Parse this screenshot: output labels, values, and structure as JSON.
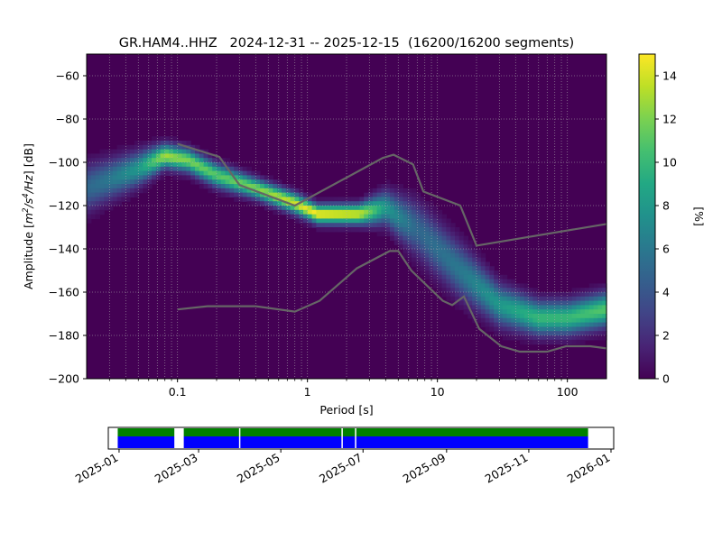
{
  "chart_data": [
    {
      "type": "heatmap",
      "title": "GR.HAM4..HHZ   2024-12-31 -- 2025-12-15  (16200/16200 segments)",
      "xlabel": "Period [s]",
      "ylabel_parts": [
        "Amplitude [",
        "m",
        "2",
        "/s",
        "4",
        "/Hz",
        "] [dB]"
      ],
      "xscale": "log",
      "xlim": [
        0.02,
        200
      ],
      "ylim": [
        -200,
        -50
      ],
      "x_ticks": [
        {
          "value": 0.1,
          "label": "0.1"
        },
        {
          "value": 1,
          "label": "1"
        },
        {
          "value": 10,
          "label": "10"
        },
        {
          "value": 100,
          "label": "100"
        }
      ],
      "y_ticks": [
        {
          "value": -60,
          "label": "−60"
        },
        {
          "value": -80,
          "label": "−80"
        },
        {
          "value": -100,
          "label": "−100"
        },
        {
          "value": -120,
          "label": "−120"
        },
        {
          "value": -140,
          "label": "−140"
        },
        {
          "value": -160,
          "label": "−160"
        },
        {
          "value": -180,
          "label": "−180"
        },
        {
          "value": -200,
          "label": "−200"
        }
      ],
      "grid": true,
      "colormap": "viridis",
      "colorbar": {
        "label": "[%]",
        "range": [
          0,
          15
        ],
        "ticks": [
          {
            "value": 0,
            "label": "0"
          },
          {
            "value": 2,
            "label": "2"
          },
          {
            "value": 4,
            "label": "4"
          },
          {
            "value": 6,
            "label": "6"
          },
          {
            "value": 8,
            "label": "8"
          },
          {
            "value": 10,
            "label": "10"
          },
          {
            "value": 12,
            "label": "12"
          },
          {
            "value": 14,
            "label": "14"
          }
        ]
      },
      "density_ridge": {
        "points": [
          {
            "period": 0.02,
            "db": -112,
            "width": 7,
            "peak": 5
          },
          {
            "period": 0.03,
            "db": -108,
            "width": 6,
            "peak": 6
          },
          {
            "period": 0.05,
            "db": -103,
            "width": 5,
            "peak": 8
          },
          {
            "period": 0.08,
            "db": -97,
            "width": 3.5,
            "peak": 13
          },
          {
            "period": 0.12,
            "db": -99,
            "width": 3.5,
            "peak": 12
          },
          {
            "period": 0.2,
            "db": -106,
            "width": 3.5,
            "peak": 11
          },
          {
            "period": 0.4,
            "db": -112,
            "width": 3,
            "peak": 12
          },
          {
            "period": 0.8,
            "db": -119,
            "width": 3,
            "peak": 14
          },
          {
            "period": 1.2,
            "db": -124,
            "width": 2.8,
            "peak": 15
          },
          {
            "period": 2.5,
            "db": -124,
            "width": 3,
            "peak": 14
          },
          {
            "period": 4,
            "db": -121,
            "width": 5,
            "peak": 8
          },
          {
            "period": 7,
            "db": -131,
            "width": 8,
            "peak": 5
          },
          {
            "period": 15,
            "db": -150,
            "width": 8,
            "peak": 6
          },
          {
            "period": 30,
            "db": -166,
            "width": 6,
            "peak": 8
          },
          {
            "period": 60,
            "db": -172,
            "width": 5,
            "peak": 10
          },
          {
            "period": 100,
            "db": -172,
            "width": 5,
            "peak": 10
          },
          {
            "period": 200,
            "db": -168,
            "width": 5,
            "peak": 11
          }
        ]
      },
      "series": [
        {
          "name": "",
          "color": "#666666",
          "points": [
            [
              0.1,
              -91.5
            ],
            [
              0.21,
              -97.5
            ],
            [
              0.3,
              -110.5
            ],
            [
              0.8,
              -120
            ],
            [
              3.8,
              -98
            ],
            [
              4.6,
              -96.5
            ],
            [
              6.5,
              -101
            ],
            [
              7.8,
              -113.5
            ],
            [
              15,
              -120
            ],
            [
              20,
              -138.5
            ],
            [
              200,
              -128.5
            ]
          ]
        },
        {
          "name": "",
          "color": "#666666",
          "points": [
            [
              0.1,
              -168
            ],
            [
              0.17,
              -166.5
            ],
            [
              0.4,
              -166.5
            ],
            [
              0.8,
              -169
            ],
            [
              1.24,
              -164
            ],
            [
              2.4,
              -149
            ],
            [
              4.3,
              -141
            ],
            [
              5,
              -141
            ],
            [
              6.3,
              -150
            ],
            [
              11,
              -164
            ],
            [
              13,
              -166
            ],
            [
              16,
              -162
            ],
            [
              21,
              -177
            ],
            [
              31,
              -185
            ],
            [
              43,
              -187.5
            ],
            [
              70,
              -187.5
            ],
            [
              98,
              -185
            ],
            [
              150,
              -185
            ],
            [
              200,
              -186
            ]
          ]
        }
      ]
    },
    {
      "type": "timeline",
      "x_ticks": [
        "2025-01",
        "2025-03",
        "2025-05",
        "2025-07",
        "2025-09",
        "2025-11",
        "2026-01"
      ],
      "xlim": [
        "2024-12-24",
        "2026-01-03"
      ],
      "coverage": {
        "start": "2024-12-31",
        "end": "2025-12-15",
        "colors": {
          "data": "#0000ff",
          "header": "#008000",
          "background": "#ffffff",
          "marker": "#b22222"
        },
        "gaps": [
          [
            "2025-02-11",
            "2025-02-17"
          ],
          [
            "2025-03-31",
            "2025-03-31"
          ],
          [
            "2025-06-15",
            "2025-06-15"
          ],
          [
            "2025-06-25",
            "2025-06-25"
          ]
        ]
      }
    }
  ]
}
